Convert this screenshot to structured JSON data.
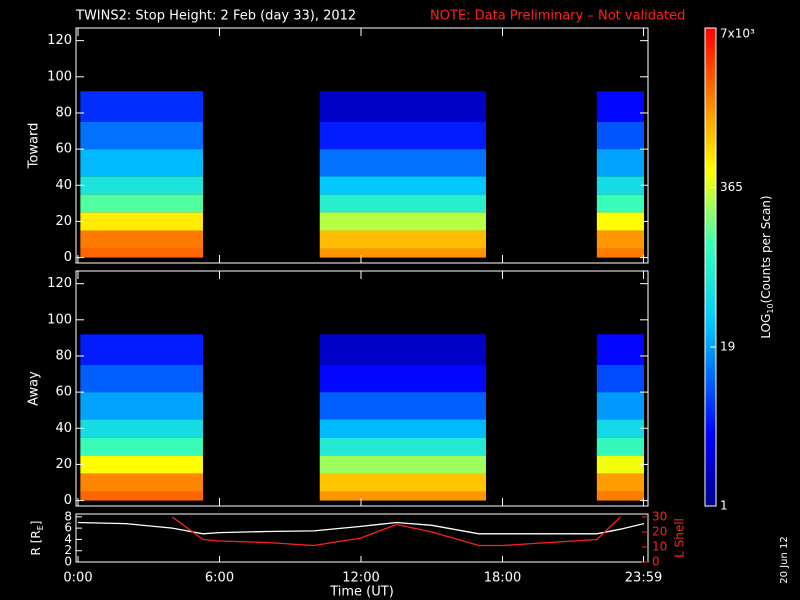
{
  "chart_data": {
    "type": "spectrogram",
    "title": "TWINS2: Stop Height:  2 Feb (day  33), 2012",
    "note": "NOTE: Data Preliminary – Not validated",
    "note_color": "#ff2020",
    "xlabel": "Time (UT)",
    "xlim": [
      0,
      24
    ],
    "xticks": [
      {
        "value": 0,
        "label": "0:00"
      },
      {
        "value": 6,
        "label": "6:00"
      },
      {
        "value": 12,
        "label": "12:00"
      },
      {
        "value": 18,
        "label": "18:00"
      },
      {
        "value": 23.98,
        "label": "23:59"
      }
    ],
    "ylim": [
      -3,
      127
    ],
    "yticks": [
      0,
      20,
      40,
      60,
      80,
      100,
      120
    ],
    "intervals": [
      [
        0.1,
        5.3
      ],
      [
        10.25,
        17.3
      ],
      [
        22.0,
        24
      ]
    ],
    "height_bins": [
      0,
      5,
      15,
      25,
      35,
      45,
      60,
      75,
      92
    ],
    "panels": [
      {
        "ylabel": "Toward",
        "values": [
          [
            2500,
            2000,
            600,
            150,
            60,
            25,
            12,
            6
          ],
          [
            1500,
            1000,
            300,
            80,
            30,
            12,
            5,
            2
          ],
          [
            2000,
            1500,
            500,
            120,
            50,
            20,
            9,
            4
          ]
        ]
      },
      {
        "ylabel": "Away",
        "values": [
          [
            2500,
            1800,
            500,
            120,
            50,
            20,
            10,
            5
          ],
          [
            1500,
            900,
            250,
            70,
            25,
            10,
            4,
            2
          ],
          [
            2000,
            1400,
            450,
            110,
            45,
            18,
            8,
            4
          ]
        ]
      }
    ],
    "colorbar": {
      "log_scale": true,
      "lim": [
        1,
        7000
      ],
      "ticks": [
        1,
        19,
        365,
        {
          "value": 7000,
          "label": "7x10³"
        }
      ],
      "label": "LOG",
      "label_sub": "10",
      "label_tail": "(Counts per Scan)"
    },
    "orbit": {
      "x": [
        0,
        2,
        4,
        5.3,
        6,
        8,
        10,
        12,
        13.5,
        15,
        17,
        18,
        20,
        22,
        23,
        24
      ],
      "ylabel": "R [R",
      "ylabel_sub": "E",
      "ylabel_tail": "]",
      "ylim": [
        0,
        8.5
      ],
      "yticks": [
        0,
        2,
        4,
        6,
        8
      ],
      "y2label": "L Shell",
      "y2lim": [
        0,
        32
      ],
      "y2ticks": [
        0,
        10,
        20,
        30
      ],
      "series": [
        {
          "name": "R",
          "color": "#ffffff",
          "values": [
            7,
            6.8,
            6,
            5,
            5.2,
            5.4,
            5.5,
            6.3,
            7,
            6.5,
            5,
            5,
            5,
            5,
            5.8,
            6.8
          ]
        },
        {
          "name": "L Shell",
          "color": "#ff2020",
          "axis": "y2",
          "values": [
            null,
            null,
            30,
            15,
            14,
            13,
            11,
            16,
            25,
            20,
            11,
            11,
            13,
            15,
            30,
            null
          ]
        }
      ]
    },
    "side_date": "20 Jun 12"
  }
}
